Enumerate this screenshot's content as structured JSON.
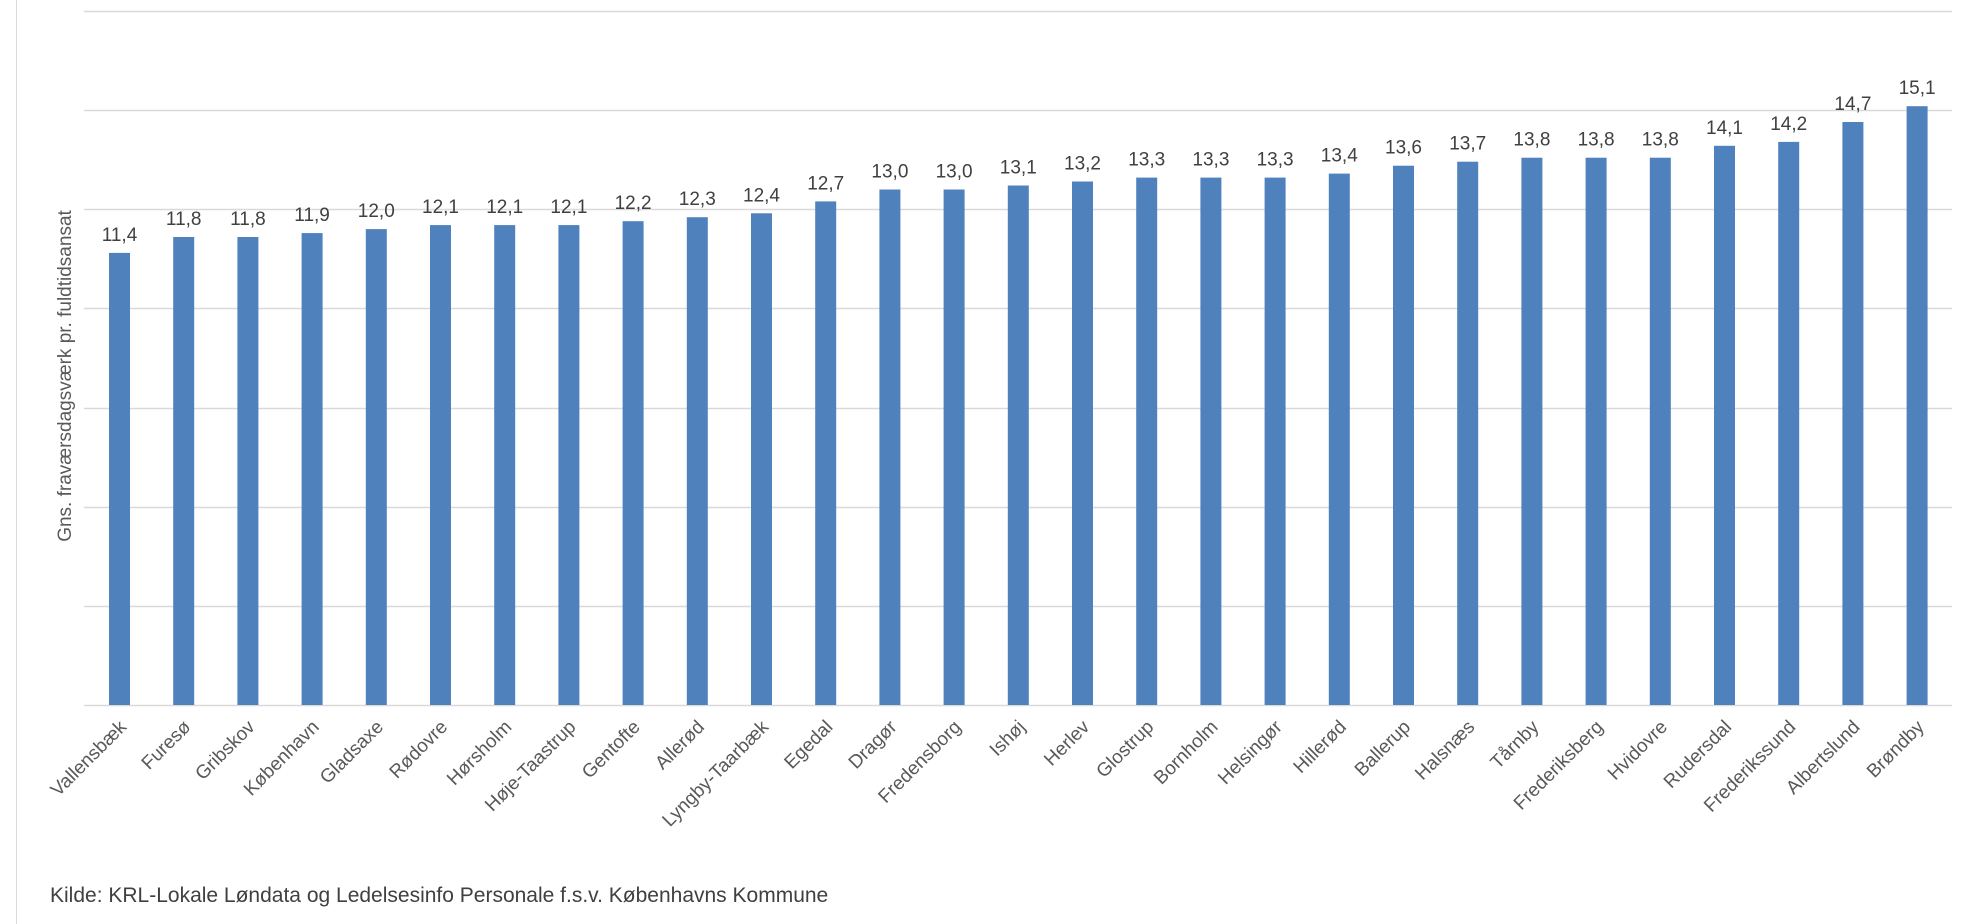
{
  "chart_data": {
    "type": "bar",
    "title": "",
    "xlabel": "",
    "ylabel": "Gns. fraværsdagsværk pr. fuldtidsansat",
    "ylim": [
      0,
      17.5
    ],
    "grid": true,
    "categories": [
      "Vallensbæk",
      "Furesø",
      "Gribskov",
      "København",
      "Gladsaxe",
      "Rødovre",
      "Hørsholm",
      "Høje-Taastrup",
      "Gentofte",
      "Allerød",
      "Lyngby-Taarbæk",
      "Egedal",
      "Dragør",
      "Fredensborg",
      "Ishøj",
      "Herlev",
      "Glostrup",
      "Bornholm",
      "Helsingør",
      "Hillerød",
      "Ballerup",
      "Halsnæs",
      "Tårnby",
      "Frederiksberg",
      "Hvidovre",
      "Rudersdal",
      "Frederikssund",
      "Albertslund",
      "Brøndby"
    ],
    "values": [
      11.4,
      11.8,
      11.8,
      11.9,
      12.0,
      12.1,
      12.1,
      12.1,
      12.2,
      12.3,
      12.4,
      12.7,
      13.0,
      13.0,
      13.1,
      13.2,
      13.3,
      13.3,
      13.3,
      13.4,
      13.6,
      13.7,
      13.8,
      13.8,
      13.8,
      14.1,
      14.2,
      14.7,
      15.1
    ],
    "data_labels": [
      "11,4",
      "11,8",
      "11,8",
      "11,9",
      "12,0",
      "12,1",
      "12,1",
      "12,1",
      "12,2",
      "12,3",
      "12,4",
      "12,7",
      "13,0",
      "13,0",
      "13,1",
      "13,2",
      "13,3",
      "13,3",
      "13,3",
      "13,4",
      "13,6",
      "13,7",
      "13,8",
      "13,8",
      "13,8",
      "14,1",
      "14,2",
      "14,7",
      "15,1"
    ],
    "bar_color": "#4f81bd",
    "gridline_color": "#d9d9d9",
    "label_color": "#404040"
  },
  "footer": {
    "source": "Kilde: KRL-Lokale Løndata og Ledelsesinfo Personale f.s.v. Københavns Kommune"
  }
}
